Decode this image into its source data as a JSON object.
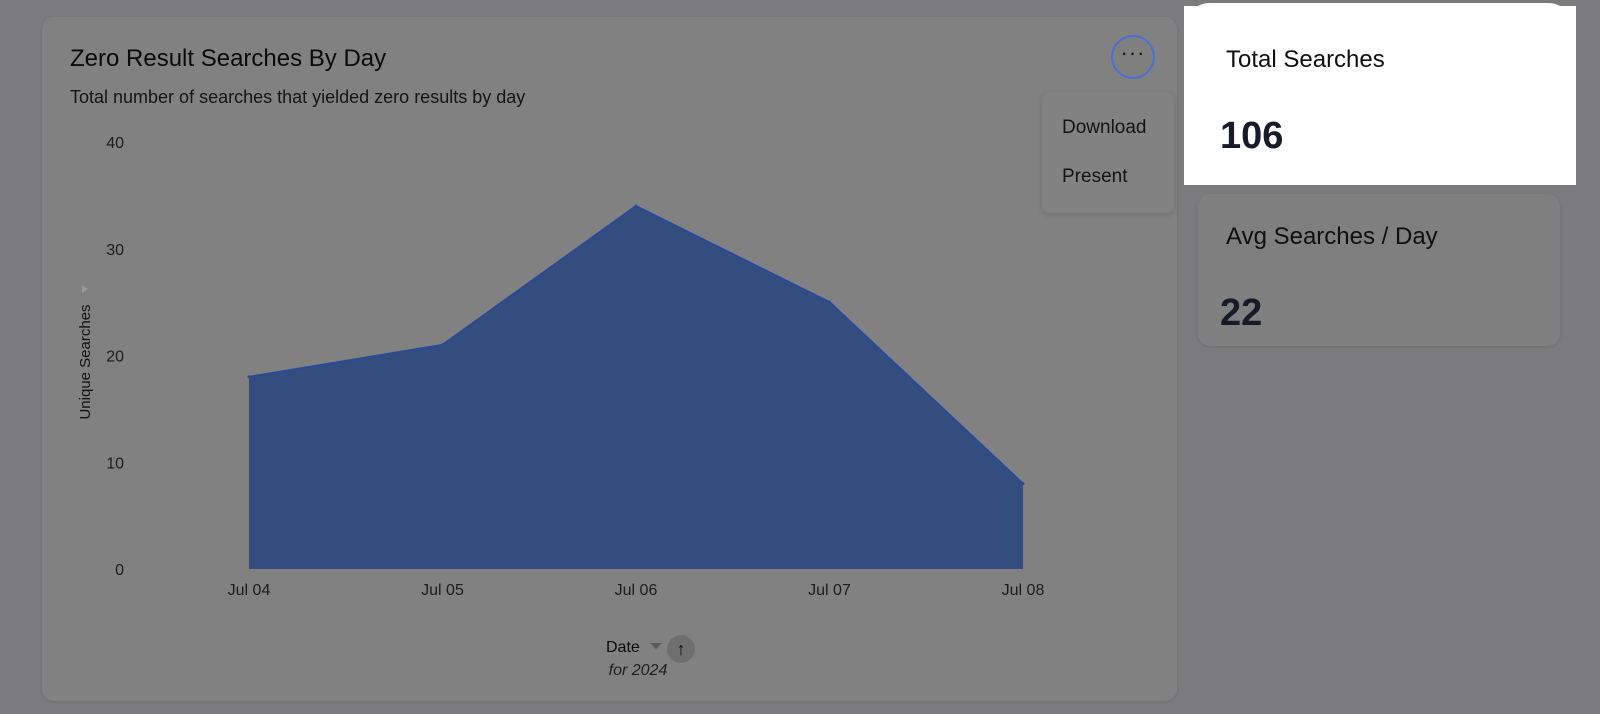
{
  "chart_card": {
    "title": "Zero Result Searches By Day",
    "subtitle": "Total number of searches that yielded zero results by day",
    "more_glyph": "···",
    "menu": {
      "items": [
        "Download",
        "Present"
      ]
    },
    "x_sort": {
      "label": "Date",
      "note": "for 2024",
      "sort_glyph": "↑"
    }
  },
  "chart_data": {
    "type": "area",
    "title": "Zero Result Searches By Day",
    "subtitle": "Total number of searches that yielded zero results by day",
    "categories": [
      "Jul 04",
      "Jul 05",
      "Jul 06",
      "Jul 07",
      "Jul 08"
    ],
    "series": [
      {
        "values": [
          18,
          21,
          34,
          25,
          8
        ]
      }
    ],
    "xlabel": "Date",
    "ylabel": "Unique Searches",
    "ylim": [
      0,
      40
    ],
    "yticks": [
      0,
      10,
      20,
      30,
      40
    ],
    "grid": false,
    "legend": "none",
    "colors": {
      "fill": "#334d7e",
      "line": "#2a4a96"
    }
  },
  "stats": [
    {
      "label": "Total Searches",
      "value": "106"
    },
    {
      "label": "Avg Searches / Day",
      "value": "22"
    }
  ],
  "icons": {
    "more": "more-horizontal-icon",
    "sort": "arrow-up-icon",
    "caret": "chevron-down-icon"
  }
}
